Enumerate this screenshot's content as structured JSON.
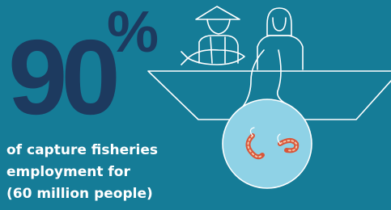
{
  "stat": {
    "number": "90",
    "unit": "%"
  },
  "caption": {
    "lines": [
      "of capture fisheries",
      "employment for",
      "(60 million people)"
    ]
  }
}
